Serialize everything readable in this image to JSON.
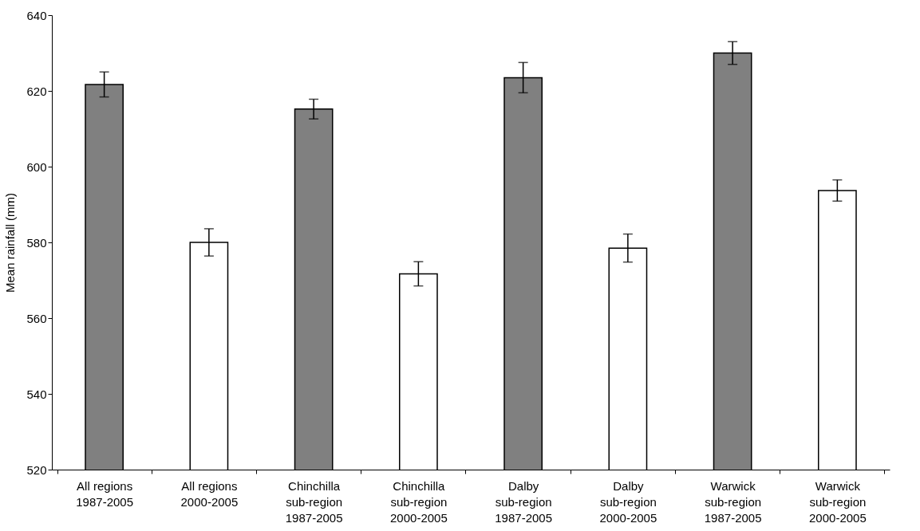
{
  "chart_data": {
    "type": "bar",
    "ylabel": "Mean rainfall (mm)",
    "categories": [
      "All regions\n1987-2005",
      "All regions\n2000-2005",
      "Chinchilla\nsub-region\n1987-2005",
      "Chinchilla\nsub-region\n2000-2005",
      "Dalby\nsub-region\n1987-2005",
      "Dalby\nsub-region\n2000-2005",
      "Warwick\nsub-region\n1987-2005",
      "Warwick\nsub-region\n2000-2005"
    ],
    "values": [
      621.7,
      580.0,
      615.2,
      571.7,
      623.5,
      578.5,
      630.0,
      593.7
    ],
    "errors": [
      3.3,
      3.6,
      2.6,
      3.2,
      4.0,
      3.7,
      3.0,
      2.8
    ],
    "colors": [
      "#808080",
      "#ffffff",
      "#808080",
      "#ffffff",
      "#808080",
      "#ffffff",
      "#808080",
      "#ffffff"
    ],
    "ylim": [
      520,
      640
    ],
    "yticks": [
      520,
      540,
      560,
      580,
      600,
      620,
      640
    ],
    "grid": false
  }
}
